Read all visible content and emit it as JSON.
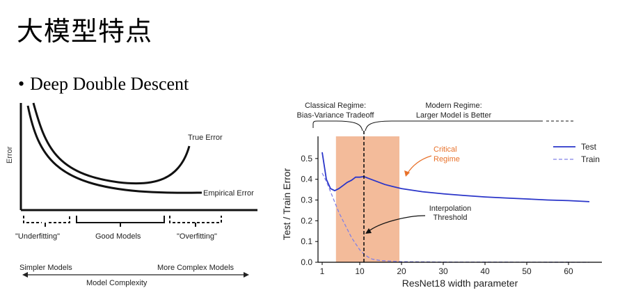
{
  "slide": {
    "title": "大模型特点",
    "bullet": "Deep Double Descent",
    "bullet_marker": "•"
  },
  "left_diagram": {
    "y_axis_label": "Error",
    "curve_labels": {
      "true_error": "True Error",
      "empirical_error": "Empirical Error"
    },
    "regions": {
      "underfitting": "\"Underfitting\"",
      "good_models": "Good Models",
      "overfitting": "\"Overfitting\""
    },
    "x_axis": {
      "simpler": "Simpler Models",
      "more_complex": "More Complex Models",
      "label": "Model Complexity"
    }
  },
  "chart_data": {
    "type": "line",
    "xlabel": "ResNet18 width parameter",
    "ylabel": "Test / Train Error",
    "xlim": [
      0,
      68
    ],
    "ylim": [
      0,
      0.56
    ],
    "xticks": [
      1,
      10,
      20,
      30,
      40,
      50,
      60
    ],
    "yticks": [
      0.0,
      0.1,
      0.2,
      0.3,
      0.4,
      0.5
    ],
    "legend_position": "top-right",
    "series": [
      {
        "name": "Test",
        "style": "solid",
        "color": "#2a35c9",
        "points": [
          [
            1,
            0.53
          ],
          [
            2,
            0.4
          ],
          [
            3,
            0.355
          ],
          [
            4,
            0.345
          ],
          [
            5,
            0.355
          ],
          [
            6,
            0.37
          ],
          [
            7,
            0.385
          ],
          [
            8,
            0.395
          ],
          [
            9,
            0.41
          ],
          [
            10,
            0.41
          ],
          [
            11,
            0.413
          ],
          [
            12,
            0.405
          ],
          [
            14,
            0.39
          ],
          [
            16,
            0.375
          ],
          [
            18,
            0.365
          ],
          [
            20,
            0.355
          ],
          [
            25,
            0.34
          ],
          [
            30,
            0.33
          ],
          [
            35,
            0.322
          ],
          [
            40,
            0.315
          ],
          [
            45,
            0.31
          ],
          [
            50,
            0.305
          ],
          [
            55,
            0.3
          ],
          [
            60,
            0.297
          ],
          [
            65,
            0.292
          ]
        ]
      },
      {
        "name": "Train",
        "style": "dashed",
        "color": "#8080e6",
        "points": [
          [
            1,
            0.43
          ],
          [
            2,
            0.39
          ],
          [
            3,
            0.34
          ],
          [
            4,
            0.29
          ],
          [
            5,
            0.24
          ],
          [
            6,
            0.2
          ],
          [
            7,
            0.16
          ],
          [
            8,
            0.12
          ],
          [
            9,
            0.09
          ],
          [
            10,
            0.06
          ],
          [
            11,
            0.04
          ],
          [
            12,
            0.025
          ],
          [
            13,
            0.015
          ],
          [
            15,
            0.008
          ],
          [
            20,
            0.003
          ],
          [
            30,
            0.001
          ],
          [
            65,
            0.0
          ]
        ]
      }
    ],
    "shaded_region": {
      "x_start": 4.3,
      "x_end": 19.5,
      "color": "#f2b48f"
    },
    "threshold_line_x": 11,
    "annotations": {
      "critical_regime": [
        "Critical",
        "Regime"
      ],
      "interpolation_threshold": [
        "Interpolation",
        "Threshold"
      ]
    },
    "regime_labels": {
      "classical": [
        "Classical Regime:",
        "Bias-Variance Tradeoff"
      ],
      "modern": [
        "Modern Regime:",
        "Larger Model is Better"
      ]
    },
    "colors": {
      "annotation_orange": "#e8712a",
      "axis": "#000000"
    }
  }
}
